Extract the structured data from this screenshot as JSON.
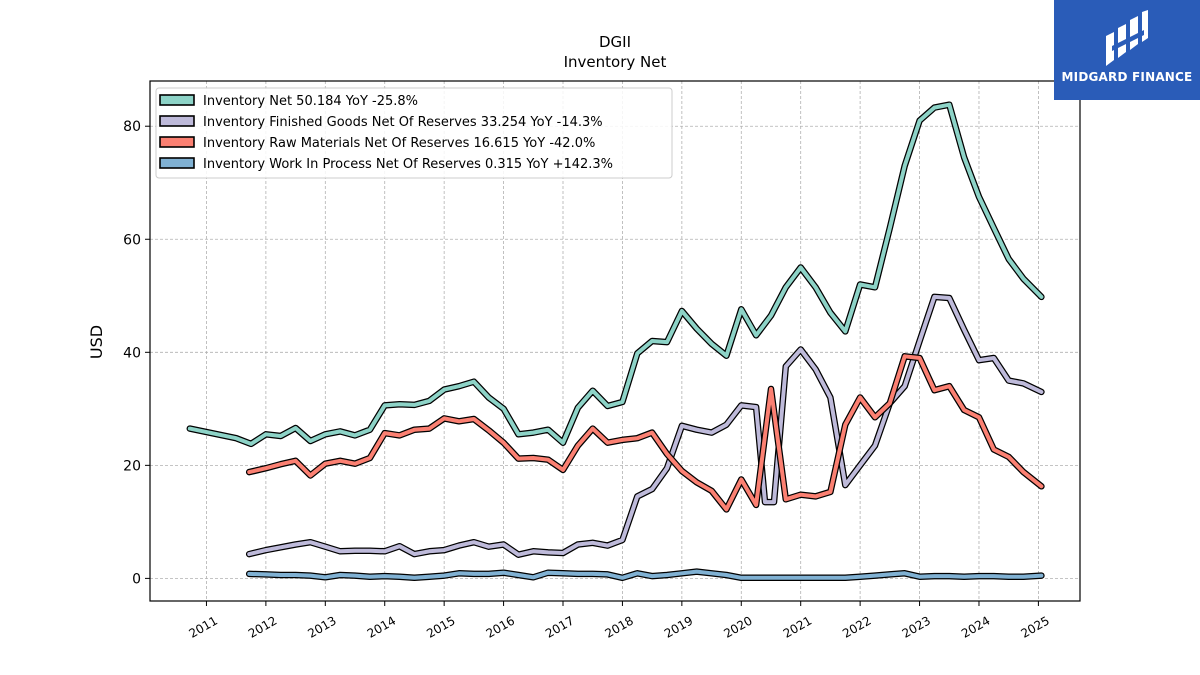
{
  "header": {
    "ticker": "DGII",
    "subtitle": "Inventory Net"
  },
  "logo": {
    "text": "MIDGARD FINANCE"
  },
  "chart_data": {
    "type": "line",
    "title": "DGII",
    "subtitle": "Inventory Net",
    "ylabel": "USD",
    "xlabel": "",
    "ylim": [
      -4,
      88
    ],
    "xlim": [
      2010.05,
      2025.7
    ],
    "yticks": [
      0,
      20,
      40,
      60,
      80
    ],
    "xticks": [
      "2011",
      "2012",
      "2013",
      "2014",
      "2015",
      "2016",
      "2017",
      "2018",
      "2019",
      "2020",
      "2021",
      "2022",
      "2023",
      "2024",
      "2025"
    ],
    "grid": true,
    "legend_position": "top-left",
    "series": [
      {
        "name": "Inventory Net",
        "legend": "Inventory Net  50.184 YoY -25.8%",
        "color": "#8dd3c7",
        "x": [
          2010.72,
          2011.5,
          2011.75,
          2012.0,
          2012.25,
          2012.5,
          2012.75,
          2013.0,
          2013.25,
          2013.5,
          2013.75,
          2014.0,
          2014.25,
          2014.5,
          2014.75,
          2015.0,
          2015.25,
          2015.5,
          2015.75,
          2016.0,
          2016.25,
          2016.5,
          2016.75,
          2017.0,
          2017.25,
          2017.5,
          2017.75,
          2018.0,
          2018.25,
          2018.5,
          2018.75,
          2019.0,
          2019.25,
          2019.5,
          2019.75,
          2020.0,
          2020.25,
          2020.5,
          2020.75,
          2021.0,
          2021.25,
          2021.5,
          2021.75,
          2022.0,
          2022.25,
          2022.5,
          2022.75,
          2023.0,
          2023.25,
          2023.5,
          2023.75,
          2024.0,
          2024.25,
          2024.5,
          2024.75,
          2025.05
        ],
        "values": [
          26.5,
          24.8,
          23.8,
          25.5,
          25.2,
          26.6,
          24.3,
          25.5,
          26.0,
          25.3,
          26.3,
          30.6,
          30.8,
          30.7,
          31.4,
          33.4,
          34.0,
          34.8,
          32.0,
          30.0,
          25.5,
          25.8,
          26.3,
          24.0,
          30.2,
          33.2,
          30.5,
          31.2,
          39.8,
          42.0,
          41.8,
          47.3,
          44.2,
          41.5,
          39.4,
          47.6,
          43.0,
          46.5,
          51.5,
          55.0,
          51.5,
          47.0,
          43.7,
          52.0,
          51.5,
          62.0,
          73.0,
          81.0,
          83.3,
          83.8,
          74.5,
          67.5,
          62.0,
          56.5,
          53.0,
          49.8
        ]
      },
      {
        "name": "Inventory Finished Goods Net Of Reserves",
        "legend": "Inventory Finished Goods Net Of Reserves  33.254 YoY -14.3%",
        "color": "#bebada",
        "x": [
          2011.72,
          2012.0,
          2012.25,
          2012.5,
          2012.75,
          2013.0,
          2013.25,
          2013.5,
          2013.75,
          2014.0,
          2014.25,
          2014.5,
          2014.75,
          2015.0,
          2015.25,
          2015.5,
          2015.75,
          2016.0,
          2016.25,
          2016.5,
          2016.75,
          2017.0,
          2017.25,
          2017.5,
          2017.75,
          2018.0,
          2018.25,
          2018.5,
          2018.75,
          2019.0,
          2019.25,
          2019.5,
          2019.75,
          2020.0,
          2020.25,
          2020.4,
          2020.55,
          2020.75,
          2021.0,
          2021.25,
          2021.5,
          2021.75,
          2022.0,
          2022.25,
          2022.5,
          2022.75,
          2023.0,
          2023.25,
          2023.5,
          2023.75,
          2024.0,
          2024.25,
          2024.5,
          2024.75,
          2025.05
        ],
        "values": [
          4.3,
          5.0,
          5.5,
          6.0,
          6.4,
          5.6,
          4.8,
          4.9,
          4.9,
          4.8,
          5.7,
          4.3,
          4.8,
          5.0,
          5.8,
          6.4,
          5.6,
          6.0,
          4.2,
          4.8,
          4.6,
          4.5,
          6.0,
          6.3,
          5.8,
          6.8,
          14.5,
          15.8,
          19.5,
          27.0,
          26.3,
          25.8,
          27.2,
          30.6,
          30.3,
          13.5,
          13.5,
          37.5,
          40.5,
          37.0,
          32.0,
          16.5,
          20.0,
          23.5,
          31.0,
          34.0,
          42.0,
          49.8,
          49.6,
          44.0,
          38.6,
          39.0,
          35.0,
          34.5,
          33.0
        ]
      },
      {
        "name": "Inventory Raw Materials Net Of Reserves",
        "legend": "Inventory Raw Materials Net Of Reserves  16.615 YoY -42.0%",
        "color": "#fb8072",
        "x": [
          2011.72,
          2012.0,
          2012.25,
          2012.5,
          2012.75,
          2013.0,
          2013.25,
          2013.5,
          2013.75,
          2014.0,
          2014.25,
          2014.5,
          2014.75,
          2015.0,
          2015.25,
          2015.5,
          2015.75,
          2016.0,
          2016.25,
          2016.5,
          2016.75,
          2017.0,
          2017.25,
          2017.5,
          2017.75,
          2018.0,
          2018.25,
          2018.5,
          2018.75,
          2019.0,
          2019.25,
          2019.5,
          2019.75,
          2020.0,
          2020.25,
          2020.5,
          2020.75,
          2021.0,
          2021.25,
          2021.5,
          2021.75,
          2022.0,
          2022.25,
          2022.5,
          2022.75,
          2023.0,
          2023.25,
          2023.5,
          2023.75,
          2024.0,
          2024.25,
          2024.5,
          2024.75,
          2025.05
        ],
        "values": [
          18.8,
          19.5,
          20.2,
          20.8,
          18.2,
          20.3,
          20.8,
          20.3,
          21.3,
          25.7,
          25.3,
          26.3,
          26.5,
          28.3,
          27.8,
          28.2,
          26.2,
          24.0,
          21.2,
          21.3,
          21.0,
          19.2,
          23.5,
          26.5,
          24.0,
          24.5,
          24.8,
          25.8,
          22.0,
          19.0,
          17.0,
          15.5,
          12.2,
          17.5,
          13.0,
          33.5,
          14.0,
          14.8,
          14.5,
          15.3,
          27.2,
          32.0,
          28.5,
          31.0,
          39.3,
          39.0,
          33.3,
          34.0,
          29.8,
          28.5,
          22.8,
          21.5,
          18.8,
          16.3
        ]
      },
      {
        "name": "Inventory Work In Process Net Of Reserves",
        "legend": "Inventory Work In Process Net Of Reserves  0.315 YoY +142.3%",
        "color": "#80b1d3",
        "x": [
          2011.72,
          2012.0,
          2012.25,
          2012.5,
          2012.75,
          2013.0,
          2013.25,
          2013.5,
          2013.75,
          2014.0,
          2014.25,
          2014.5,
          2014.75,
          2015.0,
          2015.25,
          2015.5,
          2015.75,
          2016.0,
          2016.25,
          2016.5,
          2016.75,
          2017.0,
          2017.25,
          2017.5,
          2017.75,
          2018.0,
          2018.25,
          2018.5,
          2018.75,
          2019.0,
          2019.25,
          2019.5,
          2019.75,
          2020.0,
          2020.25,
          2020.5,
          2020.75,
          2021.0,
          2021.25,
          2021.5,
          2021.75,
          2022.0,
          2022.25,
          2022.5,
          2022.75,
          2023.0,
          2023.25,
          2023.5,
          2023.75,
          2024.0,
          2024.25,
          2024.5,
          2024.75,
          2025.05
        ],
        "values": [
          0.8,
          0.7,
          0.6,
          0.6,
          0.5,
          0.2,
          0.6,
          0.5,
          0.3,
          0.4,
          0.3,
          0.1,
          0.3,
          0.5,
          0.9,
          0.8,
          0.8,
          1.0,
          0.6,
          0.2,
          1.0,
          0.9,
          0.8,
          0.8,
          0.7,
          0.1,
          0.9,
          0.4,
          0.6,
          0.9,
          1.2,
          0.9,
          0.6,
          0.1,
          0.1,
          0.1,
          0.1,
          0.1,
          0.1,
          0.1,
          0.1,
          0.3,
          0.5,
          0.7,
          0.9,
          0.3,
          0.4,
          0.4,
          0.3,
          0.4,
          0.4,
          0.3,
          0.3,
          0.5
        ]
      }
    ]
  }
}
